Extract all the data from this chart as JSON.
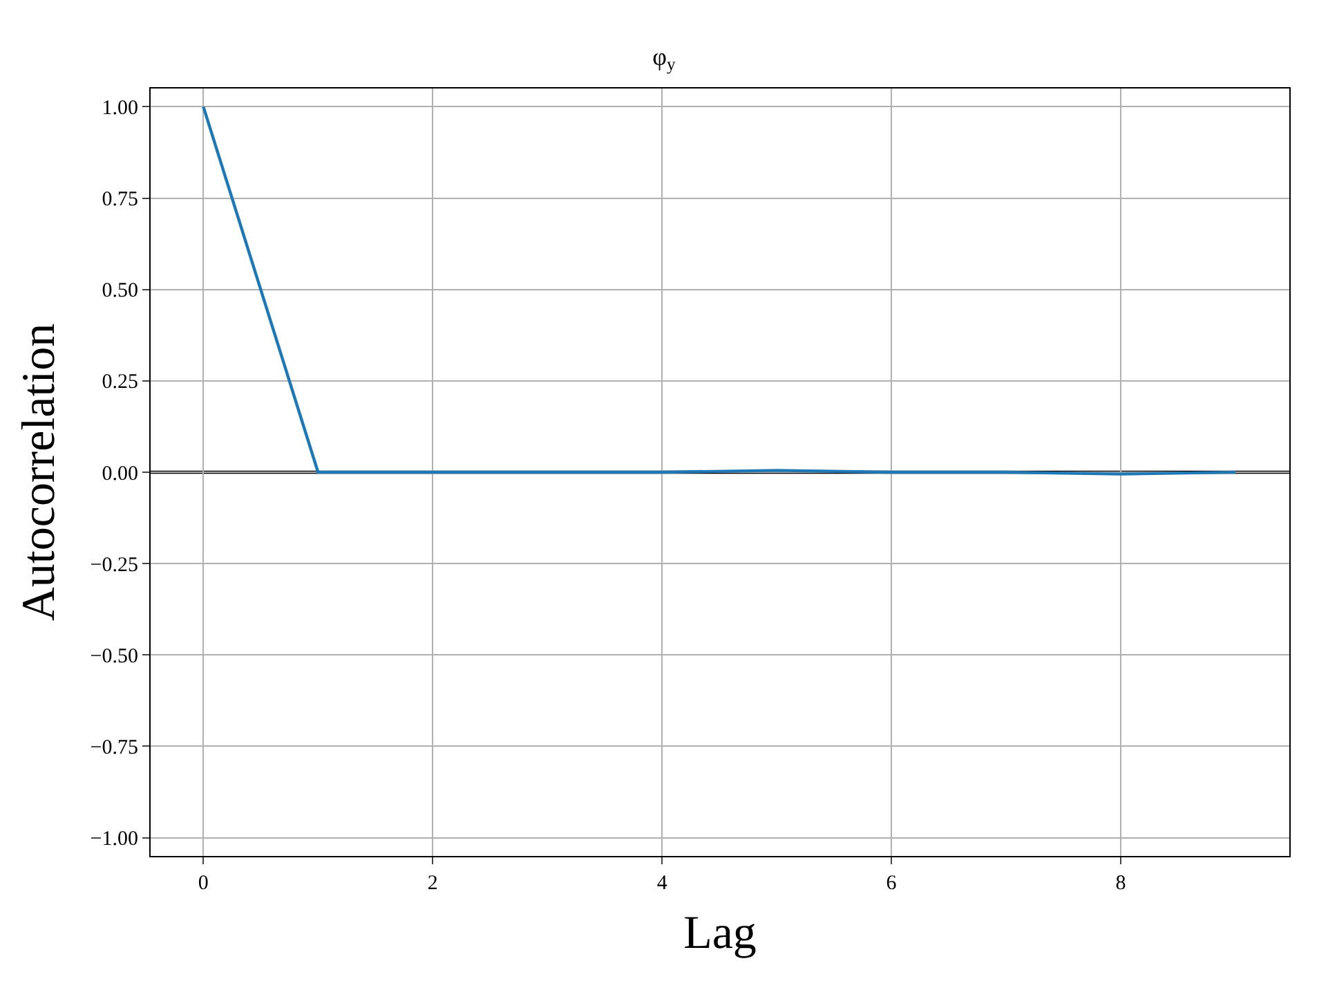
{
  "chart_data": {
    "type": "line",
    "title": "φ$_{y}$",
    "xlabel": "Lag",
    "ylabel": "Autocorrelation",
    "x": [
      0,
      1,
      2,
      3,
      4,
      5,
      6,
      7,
      8,
      9
    ],
    "series": [
      {
        "color": "#1f77b4",
        "values": [
          1.0,
          0.0,
          0.0,
          0.0,
          0.0,
          0.005,
          0.0,
          0.0,
          -0.005,
          0.0
        ]
      }
    ],
    "xlim": [
      -0.46,
      9.47
    ],
    "ylim": [
      -1.05,
      1.05
    ],
    "xticks": [
      0,
      2,
      4,
      6,
      8
    ],
    "yticks": [
      {
        "value": 1.0,
        "label": "1.00"
      },
      {
        "value": 0.75,
        "label": "0.75"
      },
      {
        "value": 0.5,
        "label": "0.50"
      },
      {
        "value": 0.25,
        "label": "0.25"
      },
      {
        "value": 0.0,
        "label": "0.00"
      },
      {
        "value": -0.25,
        "label": "−0.25"
      },
      {
        "value": -0.5,
        "label": "−0.50"
      },
      {
        "value": -0.75,
        "label": "−0.75"
      },
      {
        "value": -1.0,
        "label": "−1.00"
      }
    ],
    "ref_lines": [
      {
        "axis": "y",
        "value": 0,
        "color": "#000000"
      }
    ],
    "grid": true,
    "marker": "none",
    "line_style": "solid"
  }
}
